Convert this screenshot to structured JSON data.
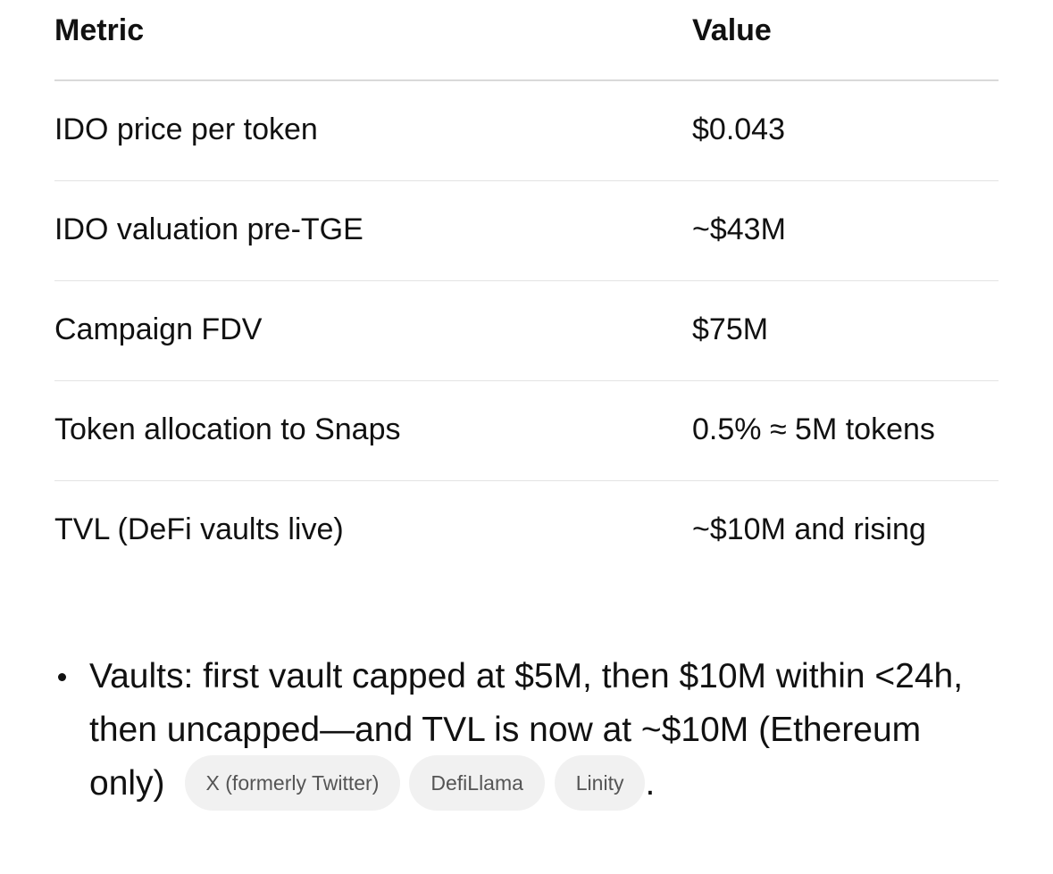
{
  "table": {
    "headers": [
      "Metric",
      "Value"
    ],
    "rows": [
      {
        "metric": "IDO price per token",
        "value": "$0.043"
      },
      {
        "metric": "IDO valuation pre-TGE",
        "value": "~$43M"
      },
      {
        "metric": "Campaign FDV",
        "value": "$75M"
      },
      {
        "metric": "Token allocation to Snaps",
        "value": "0.5% ≈ 5M tokens"
      },
      {
        "metric": "TVL (DeFi vaults live)",
        "value": "~$10M and rising"
      }
    ]
  },
  "bullet": {
    "text": "Vaults: first vault capped at $5M, then $10M within <24h, then uncapped—and TVL is now at ~$10M (Ethereum only)",
    "sources": [
      "X (formerly Twitter)",
      "DefiLlama",
      "Linity"
    ],
    "end": "."
  }
}
